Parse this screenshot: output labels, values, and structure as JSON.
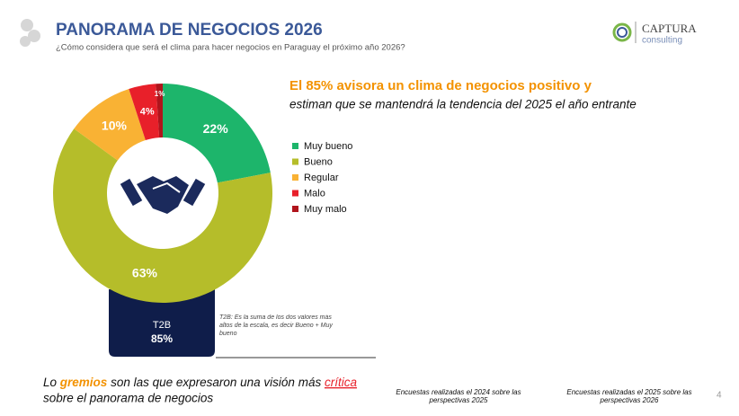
{
  "slide": {
    "title": "PANORAMA DE NEGOCIOS 2026",
    "subtitle": "¿Cómo considera que será el clima para hacer negocios en Paraguay el próximo año 2026?",
    "logo": {
      "name": "CAPTURA",
      "sub": "consulting"
    },
    "headline": "El 85% avisora un clima de negocios positivo y",
    "headline2": "estiman que se mantendrá la tendencia del 2025 el año entrante",
    "t2b": {
      "label": "T2B",
      "value": "85%",
      "note": "T2B: Es la suma de los dos valores más altos de la escala, es decir    Bueno + Muy bueno"
    },
    "bottom": {
      "parts": [
        "Lo ",
        "gremios",
        " son las que expresaron una visión más ",
        "crítica"
      ],
      "line2": "sobre el panorama de negocios"
    },
    "footer": [
      "Encuestas realizadas el 2024 sobre las perspectivas 2025",
      "Encuestas realizadas el 2025 sobre las perspectivas 2026"
    ],
    "page": "4"
  },
  "chart_data": {
    "type": "pie",
    "donut": true,
    "categories": [
      "Muy bueno",
      "Bueno",
      "Regular",
      "Malo",
      "Muy malo"
    ],
    "values": [
      22,
      63,
      10,
      4,
      1
    ],
    "value_labels": [
      "22%",
      "63%",
      "10%",
      "4%",
      "1%"
    ],
    "colors": [
      "#1db56b",
      "#b5bd2a",
      "#f9b234",
      "#e8202a",
      "#b0141c"
    ]
  }
}
